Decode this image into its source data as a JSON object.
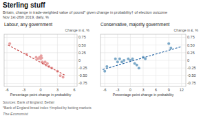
{
  "title": "Sterling stuff",
  "subtitle": "Britain, change in trade-weighted value of pound* given change in probability† of election outcome",
  "annotations": [
    "Nov 1st-26th 2019, daily, %",
    "Sources: Bank of England; Betfair",
    "*Bank of England broad index   †Implied by betting markets",
    "The Economist"
  ],
  "chart_data": [
    {
      "type": "scatter",
      "title": "Labour, any government",
      "xlabel": "Percentage-point change in probability",
      "ylabel": "Change in £, %",
      "xlim": [
        -6.5,
        6.5
      ],
      "ylim": [
        -0.85,
        0.85
      ],
      "xticks": [
        -6,
        -3,
        0,
        3,
        6
      ],
      "yticks": [
        -0.75,
        {
          "value": -0.5,
          "label": "-0.50"
        },
        -0.25,
        0,
        0.25,
        {
          "value": 0.5,
          "label": "0.50"
        },
        0.75
      ],
      "grid": true,
      "series": [
        {
          "type": "scatter",
          "marker": "circle",
          "color": "#e8a0a0",
          "x": [
            -5.5,
            -2.5,
            -0.8,
            -0.5,
            -0.2,
            0.0,
            0.1,
            0.2,
            0.3,
            0.5,
            0.8,
            1.0,
            1.2,
            1.5,
            2.0,
            3.0,
            3.5,
            4.0
          ],
          "values": [
            0.55,
            0.2,
            0.1,
            0.05,
            0.1,
            0.05,
            0.15,
            0.08,
            -0.05,
            -0.1,
            -0.05,
            -0.15,
            -0.1,
            -0.2,
            -0.25,
            -0.35,
            -0.5,
            -0.55
          ]
        },
        {
          "type": "line",
          "line_style": "dashed",
          "color": "#c44040",
          "x": [
            -5.8,
            4.5
          ],
          "values": [
            0.5,
            -0.5
          ]
        }
      ]
    },
    {
      "type": "scatter",
      "title": "Conservative, majority government",
      "xlabel": "Percentage-point change in probability",
      "ylabel": "Change in £, %",
      "xlim": [
        -7,
        13
      ],
      "ylim": [
        -0.85,
        0.85
      ],
      "xticks": [
        -6,
        -3,
        0,
        3,
        6,
        9,
        12
      ],
      "yticks": [
        -0.75,
        {
          "value": -0.5,
          "label": "-0.50"
        },
        -0.25,
        0,
        0.25,
        {
          "value": 0.5,
          "label": "0.50"
        },
        0.75
      ],
      "grid": true,
      "series": [
        {
          "type": "scatter",
          "marker": "circle",
          "color": "#7aa8c8",
          "x": [
            -6.0,
            -5.5,
            -3.5,
            -3.0,
            -2.5,
            -2.0,
            -1.5,
            -0.5,
            0.0,
            0.5,
            1.0,
            1.5,
            2.0,
            3.0,
            3.5,
            9.0,
            9.5
          ],
          "values": [
            -0.35,
            -0.2,
            0.05,
            -0.05,
            0.05,
            -0.05,
            0.0,
            0.05,
            0.0,
            0.05,
            -0.1,
            -0.15,
            -0.25,
            0.1,
            0.05,
            0.55,
            0.4
          ]
        },
        {
          "type": "line",
          "line_style": "dashed",
          "color": "#2060a0",
          "x": [
            -6.5,
            12
          ],
          "values": [
            -0.3,
            0.45
          ]
        }
      ]
    }
  ]
}
